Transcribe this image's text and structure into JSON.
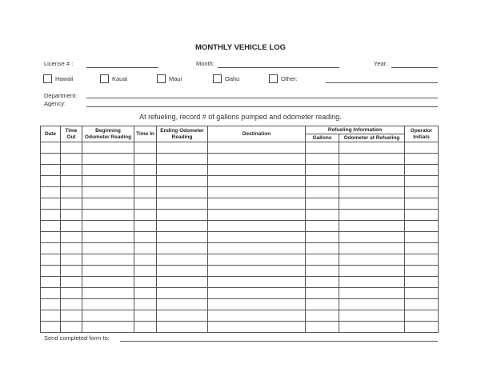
{
  "title": "MONTHLY VEHICLE LOG",
  "fields": {
    "license": "License # :",
    "month": "Month:",
    "year": "Year:",
    "department": "Department:",
    "agency": "Agency:"
  },
  "islands": [
    {
      "label": "Hawaii",
      "checked": false
    },
    {
      "label": "Kauai",
      "checked": false
    },
    {
      "label": "Maui",
      "checked": false
    },
    {
      "label": "Oahu",
      "checked": false
    },
    {
      "label": "Other:",
      "checked": false
    }
  ],
  "instruction": "At refueling, record # of gallons pumped and odometer reading.",
  "table": {
    "headers": {
      "date": "Date",
      "time_out": "Time Out",
      "beginning_odometer": "Beginning Odometer Reading",
      "time_in": "Time In",
      "ending_odometer": "Ending Odometer Reading",
      "destination": "Destination",
      "refueling": "Refueling Information",
      "gallons": "Gallons",
      "odometer_refueling": "Odometer at Refueling",
      "operator": "Operator Initials"
    },
    "row_count": 17
  },
  "footer": {
    "send_to": "Send completed form to:"
  }
}
